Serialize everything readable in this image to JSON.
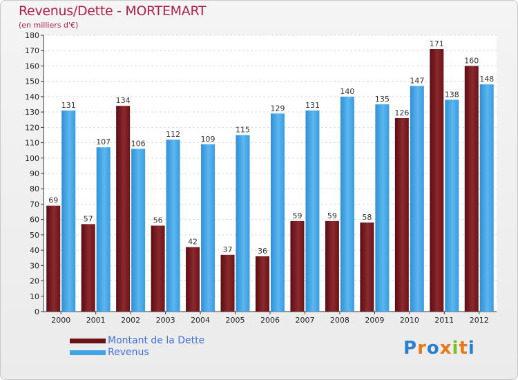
{
  "header": {
    "title": "Revenus/Dette - MORTEMART",
    "subtitle": "(en milliers d'€)"
  },
  "colors": {
    "dette": "#7a1a20",
    "revenus": "#3fa4e6",
    "title": "#b0204a",
    "legend_text": "#3d6fe0"
  },
  "legend": {
    "dette_label": "Montant de la Dette",
    "revenus_label": "Revenus"
  },
  "logo": {
    "text": "Proxiti",
    "letters": [
      "P",
      "r",
      "o",
      "x",
      "i",
      "t",
      "i"
    ],
    "letter_colors": [
      "#2a7fd0",
      "#e8781a",
      "#2a7fd0",
      "#e8781a",
      "#7cbf2a",
      "#e8781a",
      "#2a7fd0"
    ]
  },
  "chart_data": {
    "type": "bar",
    "title": "Revenus/Dette - MORTEMART",
    "ylabel": "(en milliers d'€)",
    "xlabel": "",
    "categories": [
      "2000",
      "2001",
      "2002",
      "2003",
      "2004",
      "2005",
      "2006",
      "2007",
      "2008",
      "2009",
      "2010",
      "2011",
      "2012"
    ],
    "series": [
      {
        "name": "Montant de la Dette",
        "values": [
          69,
          57,
          134,
          56,
          42,
          37,
          36,
          59,
          59,
          58,
          126,
          171,
          160
        ]
      },
      {
        "name": "Revenus",
        "values": [
          131,
          107,
          106,
          112,
          109,
          115,
          129,
          131,
          140,
          135,
          147,
          138,
          148
        ]
      }
    ],
    "ylim": [
      0,
      180
    ],
    "ytick_step": 10,
    "grid": true,
    "legend_position": "bottom-left"
  }
}
